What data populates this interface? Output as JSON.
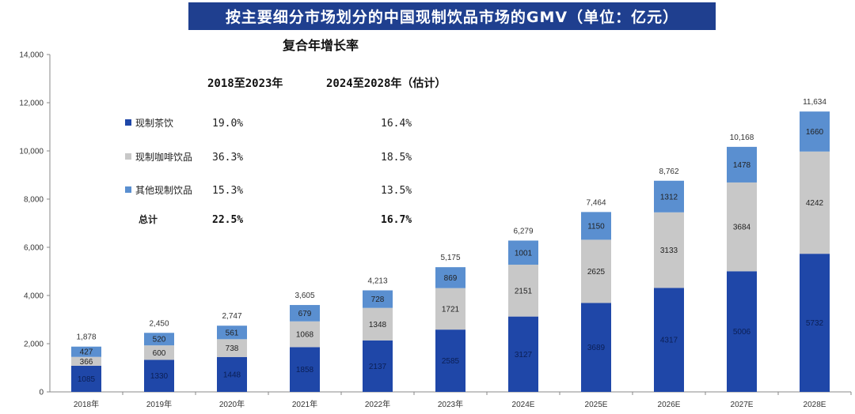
{
  "chart_data": {
    "type": "bar",
    "stacked": true,
    "title": "按主要细分市场划分的中国现制饮品市场的GMV（单位：亿元）",
    "categories": [
      "2018年",
      "2019年",
      "2020年",
      "2021年",
      "2022年",
      "2023年",
      "2024E",
      "2025E",
      "2026E",
      "2027E",
      "2028E"
    ],
    "series": [
      {
        "name": "现制茶饮",
        "color": "#1f47a8",
        "values": [
          1085,
          1330,
          1448,
          1858,
          2137,
          2585,
          3127,
          3689,
          4317,
          5006,
          5732
        ]
      },
      {
        "name": "现制咖啡饮品",
        "color": "#c8c8c8",
        "values": [
          366,
          600,
          738,
          1068,
          1348,
          1721,
          2151,
          2625,
          3133,
          3684,
          4242
        ]
      },
      {
        "name": "其他现制饮品",
        "color": "#5a8fd0",
        "values": [
          427,
          520,
          561,
          679,
          728,
          869,
          1001,
          1150,
          1312,
          1478,
          1660
        ]
      }
    ],
    "totals": [
      "1,878",
      "2,450",
      "2,747",
      "3,605",
      "4,213",
      "5,175",
      "6,279",
      "7,464",
      "8,762",
      "10,168",
      "11,634"
    ],
    "ylim": [
      0,
      14000
    ],
    "yticks": [
      0,
      2000,
      4000,
      6000,
      8000,
      10000,
      12000,
      14000
    ],
    "ytick_labels": [
      "0",
      "2,000",
      "4,000",
      "6,000",
      "8,000",
      "10,000",
      "12,000",
      "14,000"
    ],
    "xlabel": "",
    "ylabel": "",
    "grid": false
  },
  "cagr_table": {
    "title": "复合年增长率",
    "col_headers": [
      "2018至2023年",
      "2024至2028年（估计）"
    ],
    "rows": [
      {
        "label": "现制茶饮",
        "v1": "19.0%",
        "v2": "16.4%",
        "color": "#1f47a8"
      },
      {
        "label": "现制咖啡饮品",
        "v1": "36.3%",
        "v2": "18.5%",
        "color": "#c8c8c8"
      },
      {
        "label": "其他现制饮品",
        "v1": "15.3%",
        "v2": "13.5%",
        "color": "#5a8fd0"
      },
      {
        "label": "总计",
        "v1": "22.5%",
        "v2": "16.7%",
        "color": ""
      }
    ]
  }
}
